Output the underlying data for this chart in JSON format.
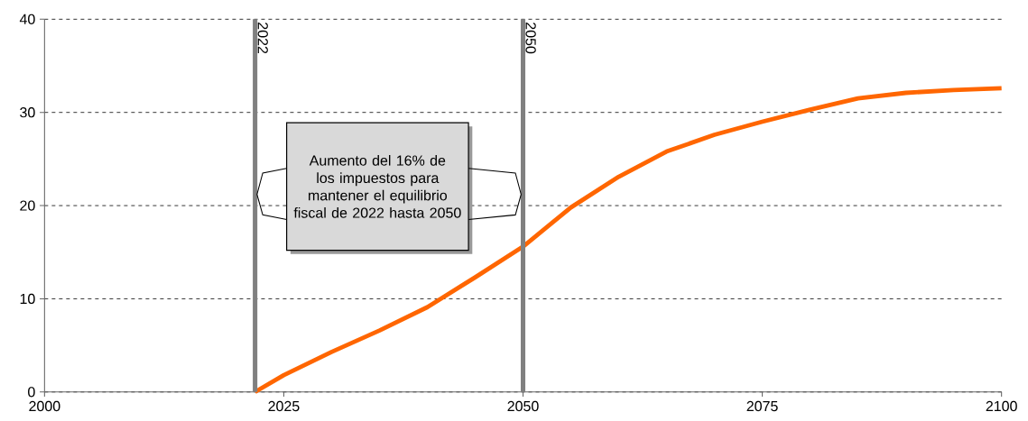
{
  "chart_data": {
    "type": "line",
    "x": [
      2022,
      2025,
      2030,
      2035,
      2040,
      2045,
      2050,
      2055,
      2060,
      2065,
      2070,
      2075,
      2080,
      2085,
      2090,
      2095,
      2100
    ],
    "series": [
      {
        "color": "#ff6600",
        "values": [
          0,
          1.8,
          4.3,
          6.6,
          9.1,
          12.3,
          15.6,
          19.8,
          23.1,
          25.8,
          27.6,
          29.0,
          30.3,
          31.5,
          32.1,
          32.4,
          32.6
        ]
      }
    ],
    "xlim": [
      2000,
      2100
    ],
    "xticks": [
      2000,
      2025,
      2050,
      2075,
      2100
    ],
    "ylim": [
      0,
      40
    ],
    "yticks": [
      0,
      10,
      20,
      30,
      40
    ],
    "grid": "y",
    "marker": "none",
    "line_style": "solid",
    "ref_lines": [
      {
        "axis": "x",
        "value": 2022,
        "label": "2022",
        "color": "#808080"
      },
      {
        "axis": "x",
        "value": 2050,
        "label": "2050",
        "color": "#808080"
      }
    ],
    "annotations": [
      "Aumento del 16% de los impuestos para mantener el equilibrio fiscal de 2022 hasta 2050"
    ]
  }
}
